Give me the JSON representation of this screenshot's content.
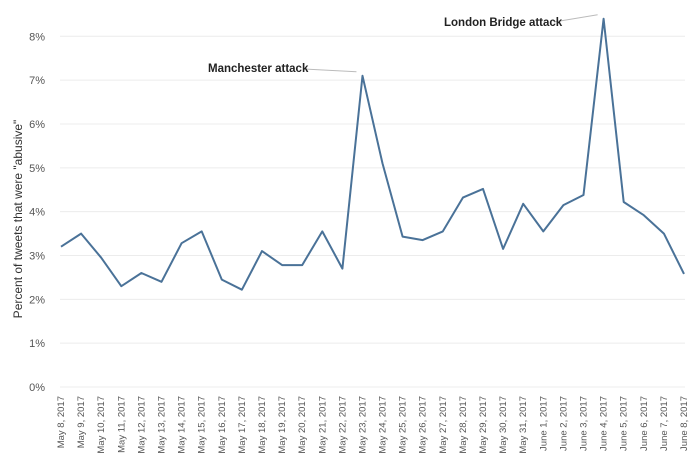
{
  "chart_data": {
    "type": "line",
    "title": "",
    "xlabel": "",
    "ylabel": "Percent of tweets that were \"abusive\"",
    "ylim": [
      0,
      8.6
    ],
    "y_ticks": [
      0,
      1,
      2,
      3,
      4,
      5,
      6,
      7,
      8
    ],
    "y_tick_labels": [
      "0%",
      "1%",
      "2%",
      "3%",
      "4%",
      "5%",
      "6%",
      "7%",
      "8%"
    ],
    "grid": true,
    "categories": [
      "May 8, 2017",
      "May 9, 2017",
      "May 10, 2017",
      "May 11, 2017",
      "May 12, 2017",
      "May 13, 2017",
      "May 14, 2017",
      "May 15, 2017",
      "May 16, 2017",
      "May 17, 2017",
      "May 18, 2017",
      "May 19, 2017",
      "May 20, 2017",
      "May 21, 2017",
      "May 22, 2017",
      "May 23, 2017",
      "May 24, 2017",
      "May 25, 2017",
      "May 26, 2017",
      "May 27, 2017",
      "May 28, 2017",
      "May 29, 2017",
      "May 30, 2017",
      "May 31, 2017",
      "June 1, 2017",
      "June 2, 2017",
      "June 3, 2017",
      "June 4, 2017",
      "June 5, 2017",
      "June 6, 2017",
      "June 7, 2017",
      "June 8, 2017"
    ],
    "series": [
      {
        "values": [
          3.2,
          3.5,
          2.95,
          2.3,
          2.6,
          2.4,
          3.28,
          3.55,
          2.45,
          2.22,
          3.1,
          2.78,
          2.78,
          3.55,
          2.7,
          7.1,
          5.1,
          3.43,
          3.35,
          3.55,
          4.32,
          4.52,
          3.15,
          4.18,
          3.55,
          4.15,
          4.38,
          8.4,
          4.22,
          3.92,
          3.5,
          2.58
        ],
        "color": "#4a7298"
      }
    ],
    "annotations": [
      {
        "text": "Manchester attack",
        "category": "May 23, 2017"
      },
      {
        "text": "London Bridge attack",
        "category": "June 4, 2017"
      }
    ]
  }
}
